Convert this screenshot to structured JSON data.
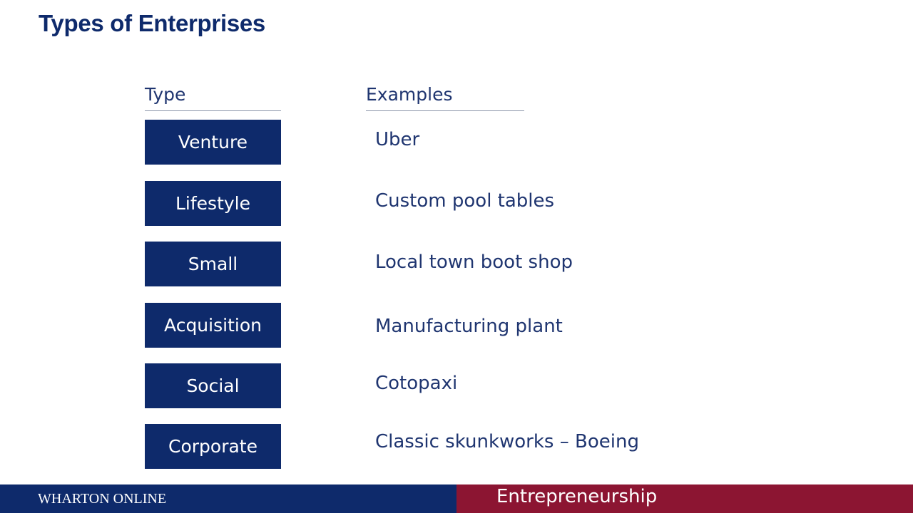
{
  "slide": {
    "title": "Types of Enterprises"
  },
  "table": {
    "type_header": "Type",
    "examples_header": "Examples",
    "rows": [
      {
        "type": "Venture",
        "example": "Uber"
      },
      {
        "type": "Lifestyle",
        "example": "Custom pool tables"
      },
      {
        "type": "Small",
        "example": "Local town boot shop"
      },
      {
        "type": "Acquisition",
        "example": "Manufacturing plant"
      },
      {
        "type": "Social",
        "example": "Cotopaxi"
      },
      {
        "type": "Corporate",
        "example": "Classic skunkworks – Boeing"
      }
    ]
  },
  "footer": {
    "left_text": "WHARTON ONLINE",
    "right_text": "Entrepreneurship"
  },
  "colors": {
    "navy": "#0e2a6b",
    "maroon": "#8c1532",
    "text_blue": "#1f3570"
  }
}
